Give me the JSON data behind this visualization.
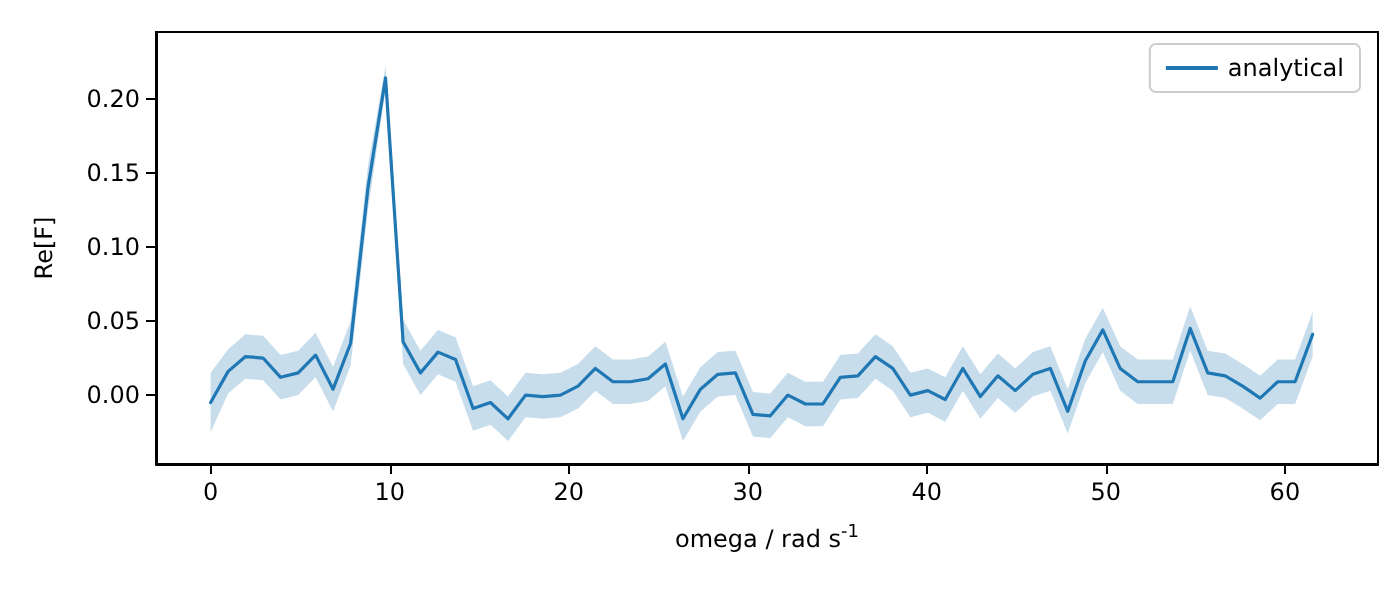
{
  "chart_data": {
    "type": "line",
    "xlabel": "omega / rad s$^{-1}$",
    "ylabel": "Re[F]",
    "xlim": [
      -3.05,
      65.2
    ],
    "xticks": [
      0,
      10,
      20,
      30,
      40,
      50,
      60
    ],
    "ylim": [
      -0.0465,
      0.245
    ],
    "yticks": [
      {
        "value": 0,
        "label": "0.00"
      },
      {
        "value": 0.05,
        "label": "0.05"
      },
      {
        "value": 0.1,
        "label": "0.10"
      },
      {
        "value": 0.15,
        "label": "0.15"
      },
      {
        "value": 0.2,
        "label": "0.20"
      }
    ],
    "grid": false,
    "legend": "top right",
    "marker": "none",
    "line_style": "solid",
    "series": [
      {
        "name": "analytical",
        "color": "#1f77b4",
        "x": [
          0,
          0.98,
          1.95,
          2.93,
          3.91,
          4.89,
          5.86,
          6.84,
          7.82,
          8.79,
          9.77,
          10.75,
          11.72,
          12.7,
          13.68,
          14.66,
          15.63,
          16.61,
          17.59,
          18.56,
          19.54,
          20.52,
          21.49,
          22.47,
          23.45,
          24.43,
          25.4,
          26.38,
          27.36,
          28.33,
          29.31,
          30.29,
          31.26,
          32.24,
          33.22,
          34.2,
          35.17,
          36.15,
          37.13,
          38.1,
          39.08,
          40.06,
          41.03,
          42.01,
          42.99,
          43.97,
          44.94,
          45.92,
          46.9,
          47.87,
          48.85,
          49.83,
          50.8,
          51.78,
          52.76,
          53.74,
          54.71,
          55.69,
          56.67,
          57.64,
          58.62,
          59.6,
          60.57,
          61.55
        ],
        "values": [
          -0.005,
          0.016,
          0.026,
          0.025,
          0.012,
          0.015,
          0.027,
          0.004,
          0.035,
          0.14,
          0.214,
          0.036,
          0.015,
          0.029,
          0.024,
          -0.009,
          -0.005,
          -0.016,
          0.0,
          -0.001,
          0.0,
          0.006,
          0.018,
          0.009,
          0.009,
          0.011,
          0.021,
          -0.016,
          0.004,
          0.014,
          0.015,
          -0.013,
          -0.014,
          0.0,
          -0.006,
          -0.006,
          0.012,
          0.013,
          0.026,
          0.018,
          0.0,
          0.003,
          -0.003,
          0.018,
          -0.001,
          0.013,
          0.003,
          0.014,
          0.018,
          -0.011,
          0.023,
          0.044,
          0.018,
          0.009,
          0.009,
          0.009,
          0.045,
          0.015,
          0.013,
          0.006,
          -0.002,
          0.009,
          0.009,
          0.041
        ],
        "upper": [
          0.015,
          0.031,
          0.041,
          0.04,
          0.027,
          0.03,
          0.042,
          0.019,
          0.05,
          0.155,
          0.222,
          0.051,
          0.03,
          0.044,
          0.039,
          0.006,
          0.01,
          -0.001,
          0.015,
          0.014,
          0.015,
          0.021,
          0.033,
          0.024,
          0.024,
          0.026,
          0.036,
          -0.001,
          0.019,
          0.029,
          0.03,
          0.002,
          0.001,
          0.015,
          0.009,
          0.009,
          0.027,
          0.028,
          0.041,
          0.033,
          0.015,
          0.018,
          0.012,
          0.033,
          0.014,
          0.028,
          0.018,
          0.029,
          0.033,
          0.004,
          0.038,
          0.059,
          0.033,
          0.024,
          0.024,
          0.024,
          0.06,
          0.03,
          0.028,
          0.021,
          0.013,
          0.024,
          0.024,
          0.056
        ],
        "lower": [
          -0.025,
          0.001,
          0.011,
          0.01,
          -0.003,
          0.0,
          0.012,
          -0.011,
          0.02,
          0.125,
          0.206,
          0.021,
          0.0,
          0.014,
          0.009,
          -0.024,
          -0.02,
          -0.031,
          -0.015,
          -0.016,
          -0.015,
          -0.009,
          0.003,
          -0.006,
          -0.006,
          -0.004,
          0.006,
          -0.031,
          -0.011,
          -0.001,
          0.0,
          -0.028,
          -0.029,
          -0.015,
          -0.021,
          -0.021,
          -0.003,
          -0.002,
          0.011,
          0.003,
          -0.015,
          -0.012,
          -0.018,
          0.003,
          -0.016,
          -0.002,
          -0.012,
          -0.001,
          0.003,
          -0.026,
          0.008,
          0.029,
          0.003,
          -0.006,
          -0.006,
          -0.006,
          0.03,
          0.0,
          -0.002,
          -0.009,
          -0.017,
          -0.006,
          -0.006,
          0.026
        ]
      }
    ]
  }
}
